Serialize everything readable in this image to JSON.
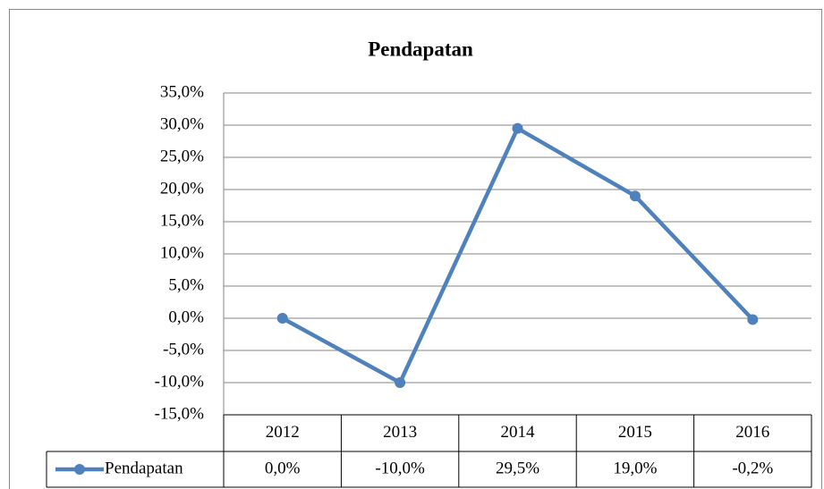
{
  "chart_data": {
    "type": "line",
    "title": "Pendapatan",
    "categories": [
      "2012",
      "2013",
      "2014",
      "2015",
      "2016"
    ],
    "series": [
      {
        "name": "Pendapatan",
        "color": "#4f81bd",
        "values": [
          0,
          -10,
          29.5,
          19,
          -0.2
        ],
        "value_labels": [
          "0,0%",
          "-10,0%",
          "29,5%",
          "19,0%",
          "-0,2%"
        ]
      }
    ],
    "ylim": [
      -15,
      35
    ],
    "yticks": [
      {
        "value": 35,
        "label": "35,0%"
      },
      {
        "value": 30,
        "label": "30,0%"
      },
      {
        "value": 25,
        "label": "25,0%"
      },
      {
        "value": 20,
        "label": "20,0%"
      },
      {
        "value": 15,
        "label": "15,0%"
      },
      {
        "value": 10,
        "label": "10,0%"
      },
      {
        "value": 5,
        "label": "5,0%"
      },
      {
        "value": 0,
        "label": "0,0%"
      },
      {
        "value": -5,
        "label": "-5,0%"
      },
      {
        "value": -10,
        "label": "-10,0%"
      },
      {
        "value": -15,
        "label": "-15,0%"
      }
    ],
    "grid": true
  }
}
